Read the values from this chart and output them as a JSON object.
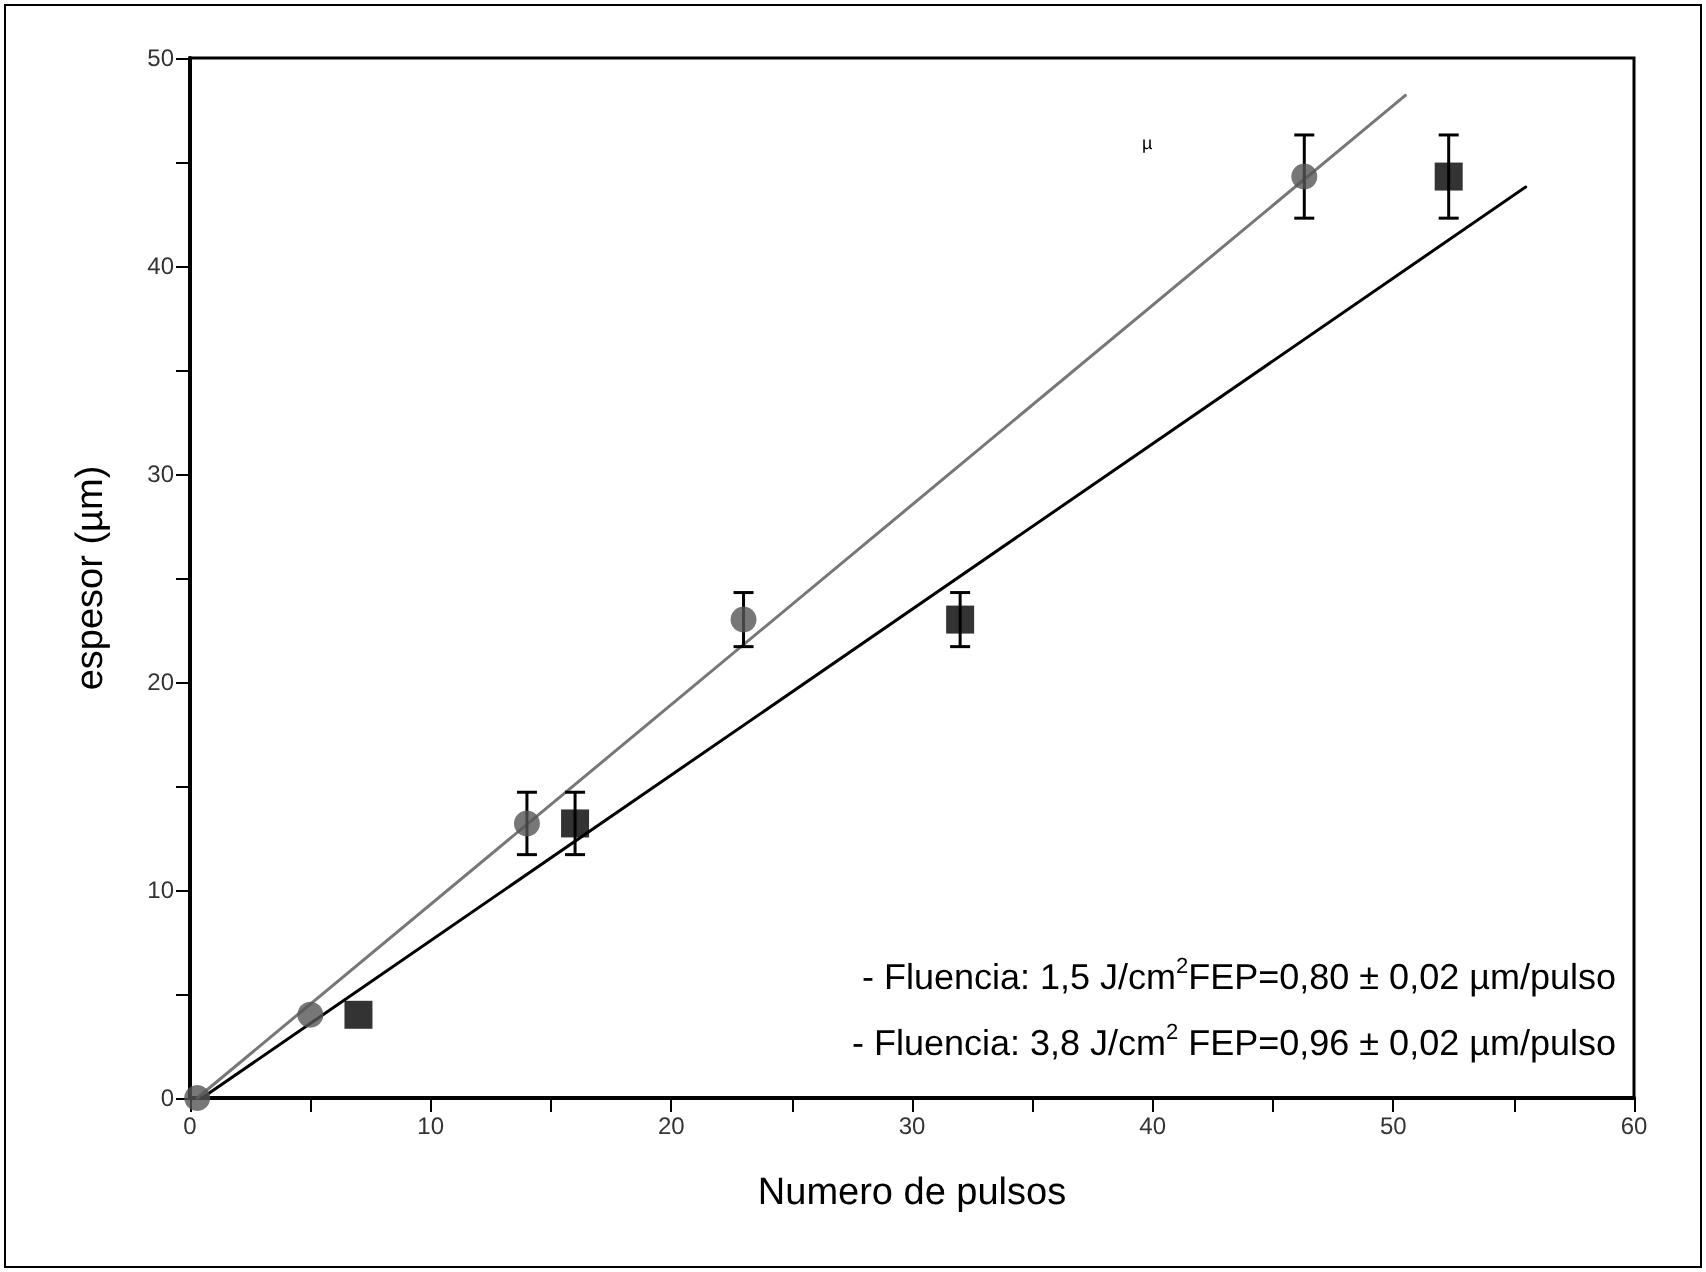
{
  "chart_data": {
    "type": "scatter",
    "xlabel": "Numero de pulsos",
    "ylabel": "espesor (µm)",
    "xlim": [
      0,
      60
    ],
    "xticks": [
      0,
      {
        "value": 5,
        "label": null
      },
      10,
      {
        "value": 15,
        "label": null
      },
      20,
      {
        "value": 25,
        "label": null
      },
      30,
      {
        "value": 35,
        "label": null
      },
      40,
      {
        "value": 45,
        "label": null
      },
      50,
      {
        "value": 55,
        "label": null
      },
      60
    ],
    "ylim": [
      0,
      50
    ],
    "yticks": [
      0,
      {
        "value": 5,
        "label": null
      },
      10,
      {
        "value": 15,
        "label": null
      },
      20,
      {
        "value": 25,
        "label": null
      },
      30,
      {
        "value": 35,
        "label": null
      },
      40,
      {
        "value": 45,
        "label": null
      },
      50
    ],
    "grid": false,
    "series": [
      {
        "marker": "circle",
        "color": "#555555",
        "x": [
          0.3,
          5,
          14,
          23,
          46.3
        ],
        "values": [
          0,
          4,
          13.2,
          23,
          44.3
        ],
        "errors": [
          null,
          null,
          1.5,
          1.3,
          2
        ]
      },
      {
        "marker": "square",
        "color": "#000000",
        "x": [
          7,
          16,
          32,
          52.3
        ],
        "values": [
          4,
          13.2,
          23,
          44.3
        ],
        "errors": [
          null,
          1.5,
          1.3,
          2
        ]
      },
      {
        "type": "line",
        "marker": "none",
        "color": "#777777",
        "x": [
          0.3,
          50.5
        ],
        "values": [
          0,
          48.2
        ]
      },
      {
        "type": "line",
        "marker": "none",
        "color": "#000000",
        "x": [
          0.5,
          55.5
        ],
        "values": [
          0,
          43.8
        ]
      }
    ],
    "annotations": [
      "- Fluencia: 1,5 J/cm$^{2}$FEP=0,80 ± 0,02 µm/pulso",
      "- Fluencia: 3,8 J/cm$^{2}$ FEP=0,96 ± 0,02 µm/pulso",
      "µ"
    ]
  }
}
